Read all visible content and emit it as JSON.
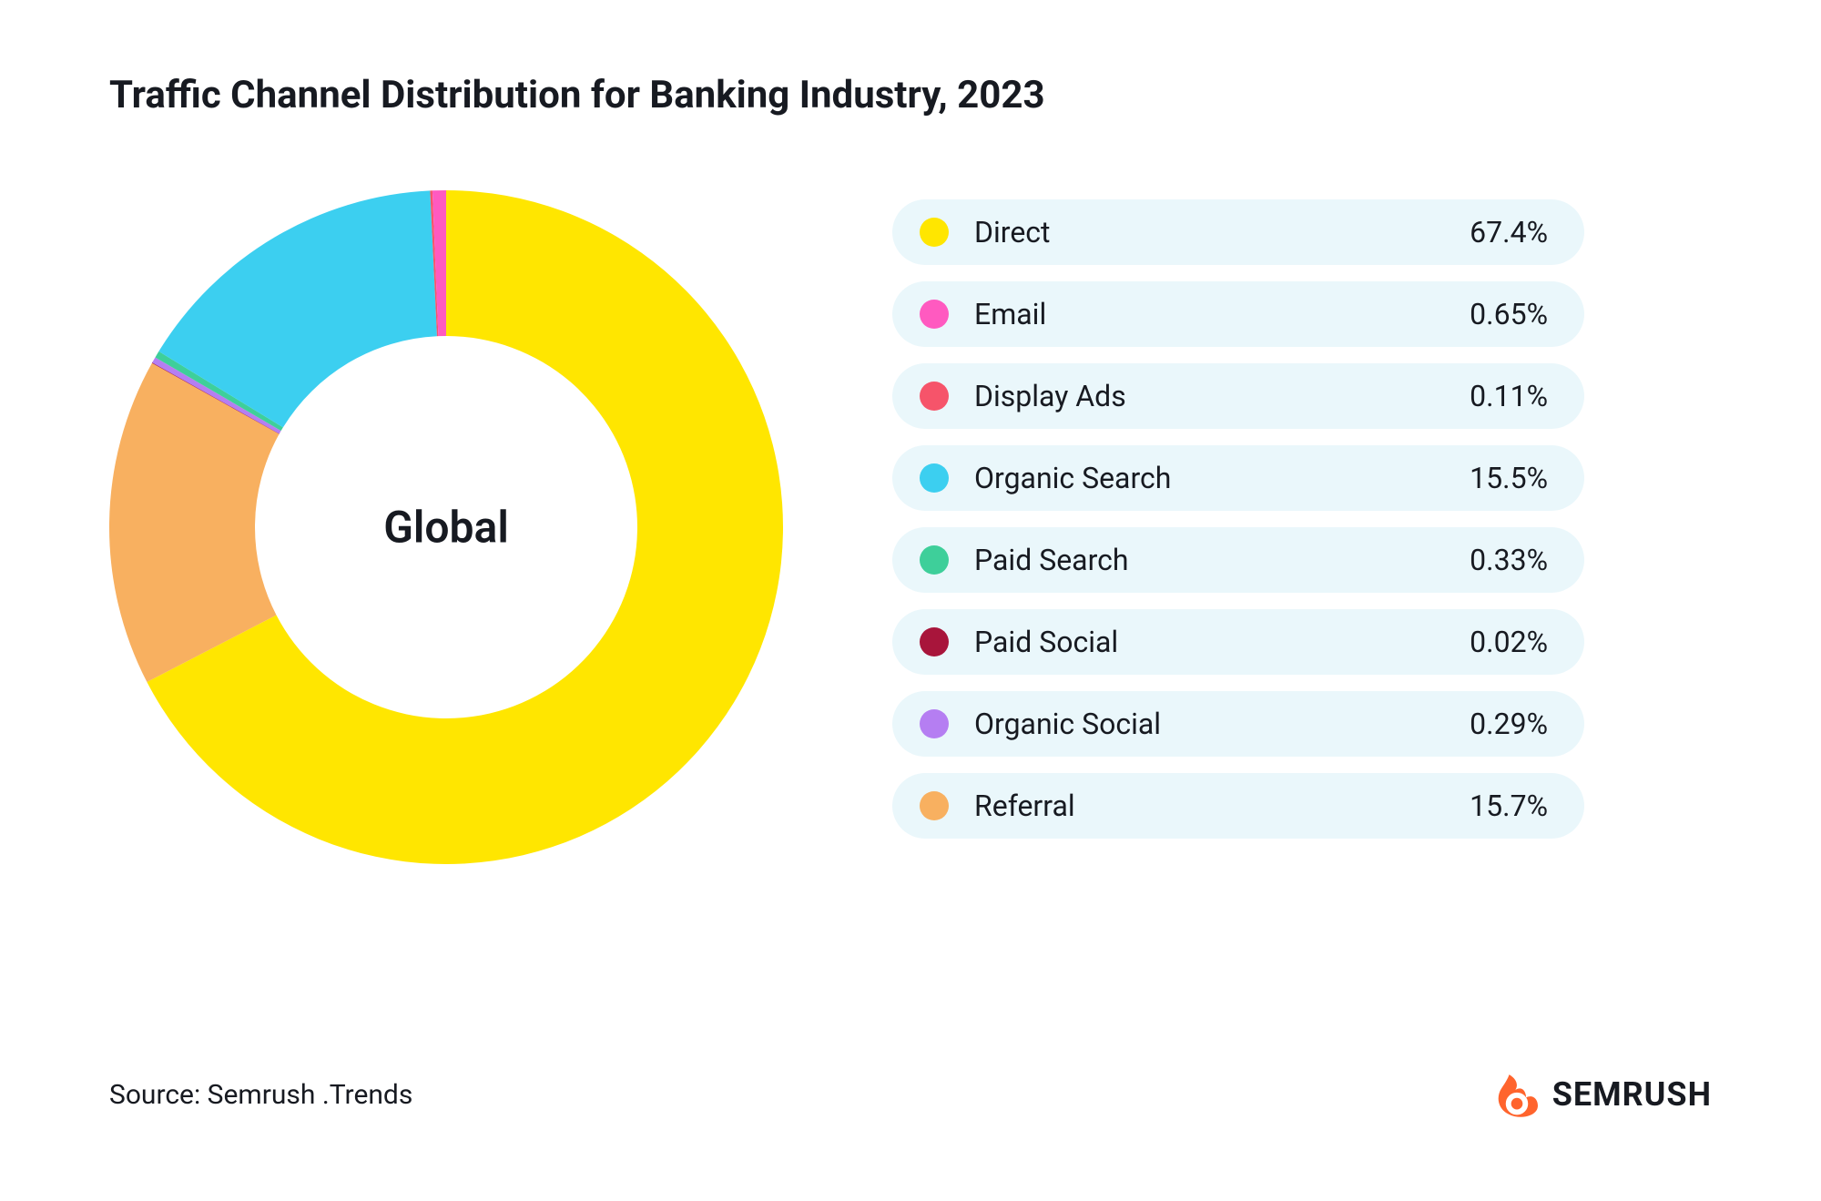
{
  "title": "Traffic Channel Distribution for Banking Industry, 2023",
  "center_label": "Global",
  "source": "Source: Semrush .Trends",
  "brand_name": "SEMRUSH",
  "chart": {
    "type": "donut",
    "outer_radius": 370,
    "inner_radius": 210,
    "start_angle_deg": -90,
    "background_color": "#ffffff",
    "title_fontsize": 42,
    "center_fontsize": 48,
    "legend_fontsize": 32,
    "source_fontsize": 30,
    "brand_fontsize": 36,
    "slices": [
      {
        "label": "Direct",
        "value": 67.4,
        "value_text": "67.4%",
        "color": "#ffe600"
      },
      {
        "label": "Referral",
        "value": 15.7,
        "value_text": "15.7%",
        "color": "#f8b060"
      },
      {
        "label": "Paid Social",
        "value": 0.02,
        "value_text": "0.02%",
        "color": "#a8153b"
      },
      {
        "label": "Organic Social",
        "value": 0.29,
        "value_text": "0.29%",
        "color": "#b57ef2"
      },
      {
        "label": "Paid Search",
        "value": 0.33,
        "value_text": "0.33%",
        "color": "#3ecf9a"
      },
      {
        "label": "Organic Search",
        "value": 15.5,
        "value_text": "15.5%",
        "color": "#3ccff0"
      },
      {
        "label": "Display Ads",
        "value": 0.11,
        "value_text": "0.11%",
        "color": "#f6546a"
      },
      {
        "label": "Email",
        "value": 0.65,
        "value_text": "0.65%",
        "color": "#ff5ac0"
      }
    ],
    "legend_order": [
      "Direct",
      "Email",
      "Display Ads",
      "Organic Search",
      "Paid Search",
      "Paid Social",
      "Organic Social",
      "Referral"
    ],
    "legend_row_bg": "#eaf7fb",
    "legend_row_height": 72,
    "legend_row_radius": 50,
    "dot_size": 32
  },
  "brand_icon": {
    "fill": "#ff642d",
    "inner_fill": "#ffffff"
  }
}
